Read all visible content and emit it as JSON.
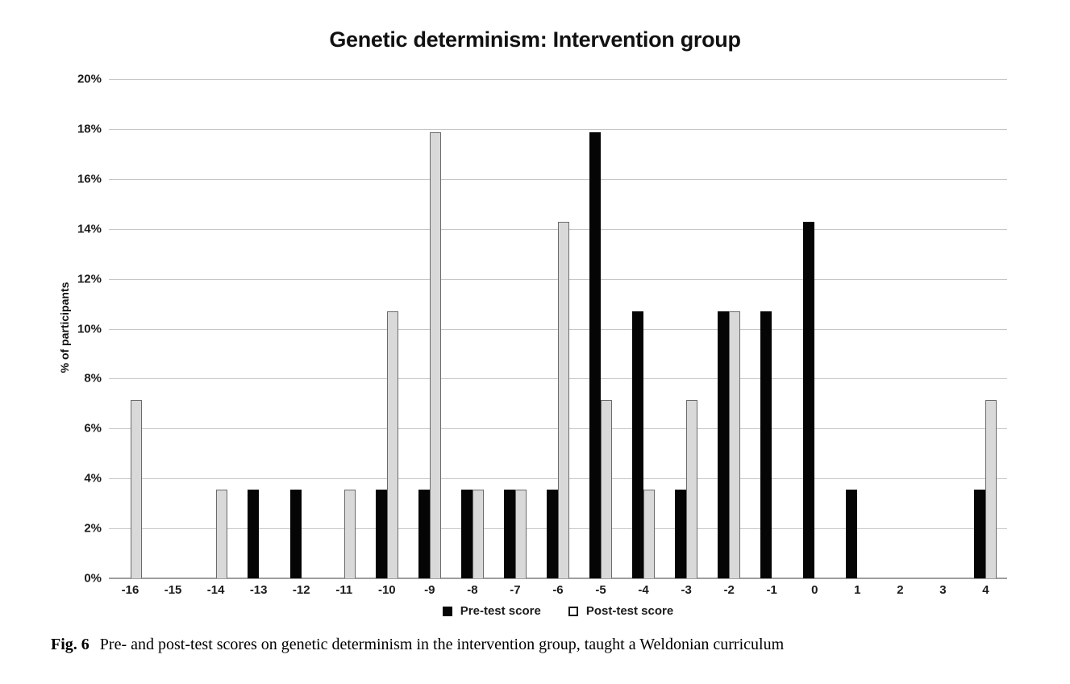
{
  "figure": {
    "caption_label": "Fig. 6",
    "caption_text": "Pre- and post-test scores on genetic determinism in the intervention group, taught a Weldonian curriculum"
  },
  "chart_data": {
    "type": "bar",
    "title": "Genetic determinism: Intervention group",
    "xlabel": "",
    "ylabel": "% of participants",
    "ylim": [
      0,
      20
    ],
    "yticks": [
      0,
      2,
      4,
      6,
      8,
      10,
      12,
      14,
      16,
      18,
      20
    ],
    "ytick_suffix": "%",
    "grid": true,
    "legend_position": "bottom-center",
    "categories": [
      "-16",
      "-15",
      "-14",
      "-13",
      "-12",
      "-11",
      "-10",
      "-9",
      "-8",
      "-7",
      "-6",
      "-5",
      "-4",
      "-3",
      "-2",
      "-1",
      "0",
      "1",
      "2",
      "3",
      "4"
    ],
    "series": [
      {
        "name": "Pre-test score",
        "color": "#050505",
        "values": [
          0,
          0,
          0,
          3.57,
          3.57,
          0,
          3.57,
          3.57,
          3.57,
          3.57,
          3.57,
          17.86,
          10.71,
          3.57,
          10.71,
          10.71,
          14.29,
          3.57,
          0,
          0,
          3.57
        ]
      },
      {
        "name": "Post-test score",
        "color": "#d9d9d9",
        "border_color": "#6b6b6b",
        "values": [
          7.14,
          0,
          3.57,
          0,
          0,
          3.57,
          10.71,
          17.86,
          3.57,
          3.57,
          14.29,
          7.14,
          3.57,
          7.14,
          10.71,
          0,
          0,
          0,
          0,
          0,
          7.14
        ]
      }
    ],
    "colors": {
      "gridline": "#c6c6c6",
      "axis_line": "#9e9e9e",
      "text": "#1b1b1b"
    }
  }
}
